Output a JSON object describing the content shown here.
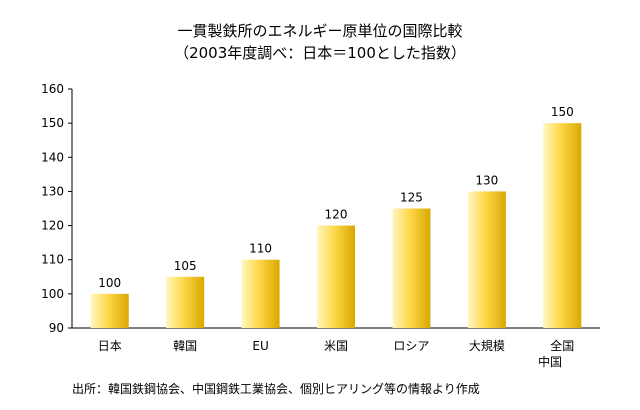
{
  "chart_data": {
    "type": "bar",
    "title": "一貫製鉄所のエネルギー原単位の国際比較",
    "subtitle": "（2003年度調べ：日本＝100とした指数）",
    "xlabel": "",
    "ylabel": "",
    "ylim": [
      90,
      160
    ],
    "yticks": [
      90,
      100,
      110,
      120,
      130,
      140,
      150,
      160
    ],
    "grid": false,
    "legend": "none",
    "categories": [
      "日本",
      "韓国",
      "EU",
      "米国",
      "ロシア",
      "大規模 中国",
      "全国"
    ],
    "values": [
      100,
      105,
      110,
      120,
      125,
      130,
      150
    ],
    "value_labels": [
      "100",
      "105",
      "110",
      "120",
      "125",
      "130",
      "150"
    ],
    "colors": {
      "bar_light": "#fff7c2",
      "bar_mid": "#ffd84a",
      "bar_dark": "#d9a800",
      "axis": "#000000"
    }
  },
  "china_group": {
    "label": "中国"
  },
  "source_note": "出所：韓国鉄鋼協会、中国鋼鉄工業協会、個別ヒアリング等の情報より作成"
}
